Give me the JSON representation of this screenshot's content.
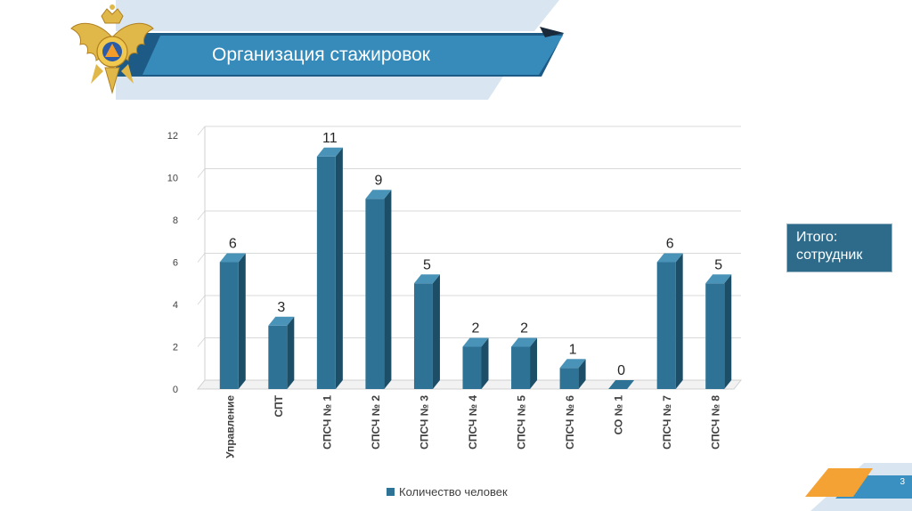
{
  "slide": {
    "title": "Организация стажировок",
    "page_number": "3"
  },
  "total_box": {
    "line1": "Итого:",
    "line2": "сотрудник"
  },
  "colors": {
    "bar_front": "#2e7396",
    "bar_side": "#1c4e68",
    "bar_top": "#4a93b8",
    "header_dark": "#1d5a86",
    "header_mid": "#3a8fc0",
    "header_light": "#d7e3ef",
    "accent_orange": "#f3a233"
  },
  "chart_data": {
    "type": "bar",
    "categories": [
      "Управление",
      "СПТ",
      "СПСЧ № 1",
      "СПСЧ № 2",
      "СПСЧ № 3",
      "СПСЧ № 4",
      "СПСЧ № 5",
      "СПСЧ № 6",
      "СО № 1",
      "СПСЧ № 7",
      "СПСЧ № 8"
    ],
    "series": [
      {
        "name": "Количество человек",
        "values": [
          6,
          3,
          11,
          9,
          5,
          2,
          2,
          1,
          0,
          6,
          5
        ]
      }
    ],
    "ylim": [
      0,
      12
    ],
    "yticks": [
      0,
      2,
      4,
      6,
      8,
      10,
      12
    ],
    "grid": true,
    "legend": "bottom",
    "data_labels": true,
    "style": "3d-column"
  }
}
